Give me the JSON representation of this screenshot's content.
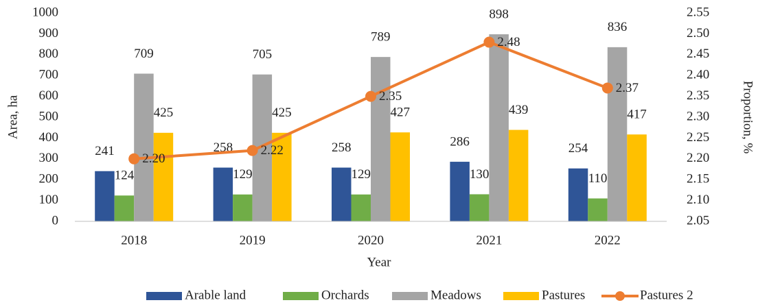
{
  "chart_data": {
    "type": "bar_line",
    "categories": [
      "2018",
      "2019",
      "2020",
      "2021",
      "2022"
    ],
    "x_label": "Year",
    "y_label": "Area, ha",
    "y2_label": "Proportion, %",
    "series": [
      {
        "name": "Arable land",
        "color": "#2f5597",
        "type": "bar",
        "values": [
          241,
          258,
          258,
          286,
          254
        ]
      },
      {
        "name": "Orchards",
        "color": "#70ad47",
        "type": "bar",
        "values": [
          124,
          129,
          129,
          130,
          110
        ]
      },
      {
        "name": "Meadows",
        "color": "#a5a5a5",
        "type": "bar",
        "values": [
          709,
          705,
          789,
          898,
          836
        ]
      },
      {
        "name": "Pastures",
        "color": "#ffc000",
        "type": "bar",
        "values": [
          425,
          425,
          427,
          439,
          417
        ]
      },
      {
        "name": "Pastures 2",
        "color": "#ed7d31",
        "type": "line",
        "axis": "y2",
        "values": [
          2.2,
          2.22,
          2.35,
          2.48,
          2.37
        ],
        "value_labels": [
          "2.20",
          "2.22",
          "2.35",
          "2.48",
          "2.37"
        ]
      }
    ],
    "ylim": [
      0,
      1000
    ],
    "yticks": [
      0,
      100,
      200,
      300,
      400,
      500,
      600,
      700,
      800,
      900,
      1000
    ],
    "y2lim": [
      2.05,
      2.55
    ],
    "y2ticks": [
      2.05,
      {
        "value": 2.1,
        "label": "2.10"
      },
      2.15,
      {
        "value": 2.2,
        "label": "2.20"
      },
      2.25,
      {
        "value": 2.3,
        "label": "2.30"
      },
      2.35,
      {
        "value": 2.4,
        "label": "2.40"
      },
      2.45,
      {
        "value": 2.5,
        "label": "2.50"
      },
      2.55
    ],
    "grid": false,
    "legend": "bottom"
  }
}
